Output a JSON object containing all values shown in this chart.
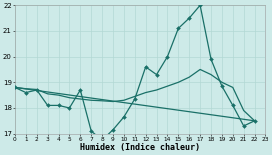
{
  "xlabel": "Humidex (Indice chaleur)",
  "background_color": "#cdeae8",
  "line_color": "#1a7068",
  "grid_color": "#b2d8d4",
  "xlim": [
    0,
    23
  ],
  "ylim": [
    17,
    22
  ],
  "xtick_values": [
    0,
    1,
    2,
    3,
    4,
    5,
    6,
    7,
    8,
    9,
    10,
    11,
    12,
    13,
    14,
    15,
    16,
    17,
    18,
    19,
    20,
    21,
    22,
    23
  ],
  "ytick_values": [
    17,
    18,
    19,
    20,
    21,
    22
  ],
  "series1_x": [
    0,
    1,
    2,
    3,
    4,
    5,
    6,
    7,
    8,
    9,
    10,
    11,
    12,
    13,
    14,
    15,
    16,
    17,
    18,
    19,
    20,
    21,
    22
  ],
  "series1_y": [
    18.8,
    18.6,
    18.7,
    18.1,
    18.1,
    18.0,
    18.7,
    17.1,
    16.75,
    17.15,
    17.65,
    18.35,
    19.6,
    19.3,
    20.0,
    21.1,
    21.5,
    22.0,
    19.9,
    18.85,
    18.1,
    17.3,
    17.5
  ],
  "series2_x": [
    0,
    1,
    2,
    3,
    4,
    5,
    6,
    7,
    8,
    9,
    10,
    11,
    12,
    13,
    14,
    15,
    16,
    17,
    18,
    19,
    20,
    21,
    22
  ],
  "series2_y": [
    18.8,
    18.75,
    18.72,
    18.55,
    18.5,
    18.4,
    18.35,
    18.3,
    18.28,
    18.25,
    18.3,
    18.45,
    18.6,
    18.7,
    18.85,
    19.0,
    19.2,
    19.5,
    19.3,
    19.0,
    18.8,
    17.9,
    17.5
  ],
  "series3_x": [
    0,
    22
  ],
  "series3_y": [
    18.8,
    17.5
  ]
}
